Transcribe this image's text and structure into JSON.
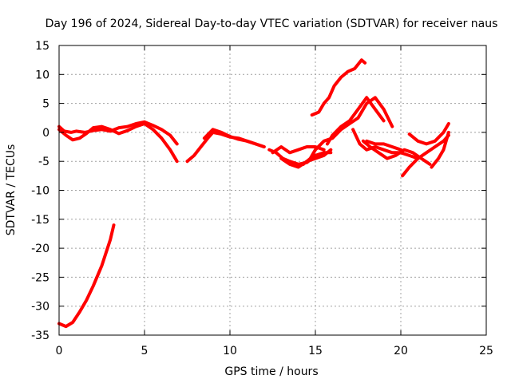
{
  "chart_data": {
    "type": "line",
    "title": "Day 196 of 2024, Sidereal Day-to-day VTEC variation (SDTVAR) for receiver naus",
    "xlabel": "GPS time / hours",
    "ylabel": "SDTVAR / TECUs",
    "xlim": [
      0,
      25
    ],
    "ylim": [
      -35,
      15
    ],
    "xticks": [
      "0",
      "5",
      "10",
      "15",
      "20",
      "25"
    ],
    "yticks": [
      "15",
      "10",
      "5",
      "0",
      "-5",
      "-10",
      "-15",
      "-20",
      "-25",
      "-30",
      "-35"
    ],
    "grid": true,
    "color": "#ff0000",
    "series": [
      {
        "name": "s1",
        "x": [
          0.0,
          0.3,
          0.7,
          1.0,
          1.5,
          2.0,
          2.5,
          3.0,
          3.5,
          4.0,
          4.5,
          5.0,
          5.5,
          6.0,
          6.5,
          6.9
        ],
        "y": [
          1.0,
          0.2,
          0.0,
          0.2,
          0.0,
          0.3,
          0.5,
          0.2,
          0.8,
          1.0,
          1.5,
          1.8,
          1.2,
          0.5,
          -0.5,
          -2.0
        ]
      },
      {
        "name": "s2",
        "x": [
          0.0,
          0.4,
          0.8,
          1.2,
          1.6,
          2.0,
          2.5,
          3.0,
          3.5,
          4.0,
          4.5,
          5.0,
          5.5,
          6.0,
          6.5,
          6.9
        ],
        "y": [
          0.5,
          -0.5,
          -1.3,
          -1.0,
          -0.2,
          0.8,
          1.0,
          0.5,
          -0.2,
          0.3,
          1.0,
          1.5,
          0.5,
          -1.0,
          -3.0,
          -5.0
        ]
      },
      {
        "name": "s3",
        "x": [
          7.5,
          7.9,
          8.3,
          8.7,
          9.0,
          9.5,
          10.0,
          10.5,
          11.0,
          11.5,
          12.0
        ],
        "y": [
          -5.0,
          -4.0,
          -2.5,
          -1.0,
          0.0,
          -0.3,
          -0.8,
          -1.0,
          -1.5,
          -2.0,
          -2.5
        ]
      },
      {
        "name": "s4",
        "x": [
          8.5,
          9.0,
          9.5,
          10.0,
          10.5,
          11.0,
          11.5,
          12.0
        ],
        "y": [
          -1.0,
          0.5,
          0.0,
          -0.7,
          -1.2,
          -1.5,
          -2.0,
          -2.5
        ]
      },
      {
        "name": "s5",
        "x": [
          12.3,
          12.7,
          13.1,
          13.5,
          14.0,
          14.5,
          15.0,
          15.5,
          15.9
        ],
        "y": [
          -3.0,
          -3.5,
          -4.5,
          -5.0,
          -5.5,
          -5.2,
          -4.0,
          -3.5,
          -3.5
        ]
      },
      {
        "name": "s6",
        "x": [
          12.5,
          13.0,
          13.5,
          14.0,
          14.5,
          15.0,
          15.5
        ],
        "y": [
          -3.5,
          -2.5,
          -3.5,
          -3.0,
          -2.5,
          -2.5,
          -3.0
        ]
      },
      {
        "name": "s7",
        "x": [
          13.0,
          13.5,
          14.0,
          14.5,
          15.0,
          15.5,
          15.9
        ],
        "y": [
          -4.5,
          -5.5,
          -6.0,
          -5.0,
          -4.5,
          -4.0,
          -3.0
        ]
      },
      {
        "name": "s8",
        "x": [
          14.3,
          14.7,
          15.0,
          15.5,
          16.0,
          16.5,
          17.0,
          17.5,
          18.0,
          18.5,
          19.0,
          19.5
        ],
        "y": [
          -5.5,
          -4.5,
          -3.0,
          -1.5,
          -1.0,
          0.5,
          1.5,
          2.5,
          5.0,
          6.0,
          4.0,
          1.0
        ]
      },
      {
        "name": "s9",
        "x": [
          15.7,
          16.0,
          16.5,
          17.0,
          17.5,
          18.0,
          18.5,
          19.0
        ],
        "y": [
          -2.0,
          -0.5,
          1.0,
          2.0,
          4.0,
          6.0,
          4.0,
          2.0
        ]
      },
      {
        "name": "s10",
        "x": [
          14.8,
          15.2,
          15.5,
          15.8,
          16.1,
          16.5,
          16.9,
          17.3,
          17.7,
          17.9
        ],
        "y": [
          3.0,
          3.5,
          5.0,
          6.0,
          8.0,
          9.5,
          10.5,
          11.0,
          12.5,
          12.0
        ]
      },
      {
        "name": "s11",
        "x": [
          17.2,
          17.6,
          18.0,
          18.5,
          19.0,
          19.5,
          20.0,
          20.5,
          21.0
        ],
        "y": [
          0.5,
          -2.0,
          -3.0,
          -2.5,
          -3.0,
          -3.5,
          -3.5,
          -4.0,
          -4.5
        ]
      },
      {
        "name": "s12",
        "x": [
          17.8,
          18.2,
          18.7,
          19.2,
          19.7,
          20.2,
          20.7,
          21.2,
          21.7
        ],
        "y": [
          -1.5,
          -2.5,
          -3.5,
          -4.5,
          -4.0,
          -3.0,
          -3.5,
          -4.5,
          -5.5
        ]
      },
      {
        "name": "s13",
        "x": [
          18.0,
          18.5,
          19.0,
          19.5,
          20.0
        ],
        "y": [
          -1.5,
          -2.0,
          -2.0,
          -2.5,
          -3.0
        ]
      },
      {
        "name": "s14",
        "x": [
          20.1,
          20.5,
          21.0,
          21.5,
          22.0,
          22.5,
          22.8
        ],
        "y": [
          -7.5,
          -6.0,
          -4.5,
          -3.5,
          -2.5,
          -1.5,
          -0.5
        ]
      },
      {
        "name": "s15",
        "x": [
          20.5,
          21.0,
          21.5,
          22.0,
          22.5,
          22.8
        ],
        "y": [
          -0.3,
          -1.5,
          -2.0,
          -1.5,
          0.0,
          1.5
        ]
      },
      {
        "name": "s16",
        "x": [
          21.8,
          22.2,
          22.5,
          22.8
        ],
        "y": [
          -6.0,
          -4.5,
          -3.0,
          0.0
        ]
      },
      {
        "name": "s17",
        "x": [
          0.0,
          0.4,
          0.8,
          1.2,
          1.6,
          2.0,
          2.5,
          3.0,
          3.2
        ],
        "y": [
          -33.0,
          -33.5,
          -32.8,
          -31.0,
          -29.0,
          -26.5,
          -23.0,
          -18.5,
          -16.0
        ]
      }
    ]
  }
}
